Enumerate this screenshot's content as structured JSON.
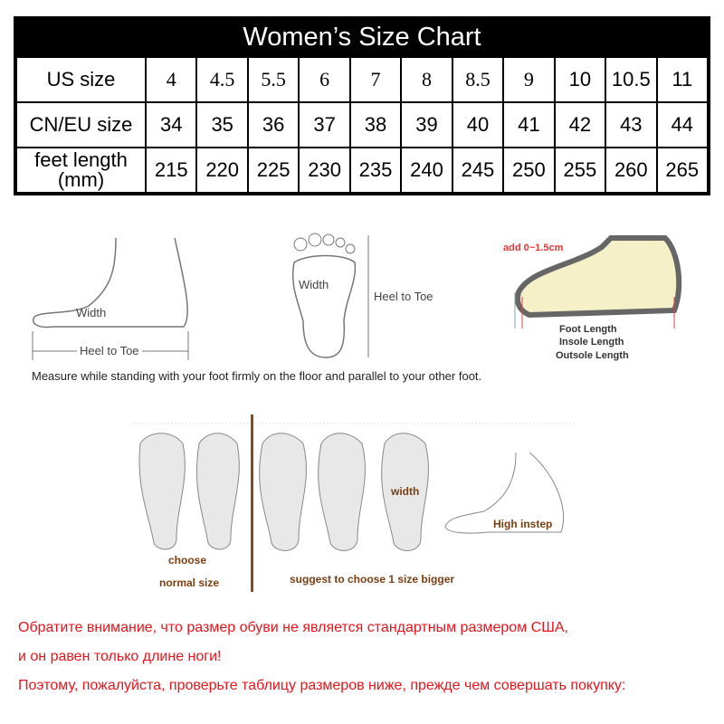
{
  "title": "Women’s Size Chart",
  "table": {
    "rows": [
      {
        "header": "US size",
        "values": [
          "4",
          "4.5",
          "5.5",
          "6",
          "7",
          "8",
          "8.5",
          "9",
          "10",
          "10.5",
          "11"
        ]
      },
      {
        "header": "CN/EU size",
        "values": [
          "34",
          "35",
          "36",
          "37",
          "38",
          "39",
          "40",
          "41",
          "42",
          "43",
          "44"
        ]
      },
      {
        "header": "feet length\n(mm)",
        "header_line1": "feet length",
        "header_line2": "(mm)",
        "values": [
          "215",
          "220",
          "225",
          "230",
          "235",
          "240",
          "245",
          "250",
          "255",
          "260",
          "265"
        ]
      }
    ]
  },
  "measure": {
    "side_width": "Width",
    "side_heel_to_toe": "Heel to Toe",
    "sole_width": "Width",
    "sole_heel_to_toe": "Heel to Toe",
    "shoe_add": "add 0~1.5cm",
    "foot_length": "Foot Length",
    "insole_length": "Insole Length",
    "outsole_length": "Outsole Length",
    "instruction": "Measure while standing with your foot firmly on the floor and parallel to your other foot."
  },
  "feet_types": {
    "choose_line1": "choose",
    "choose_line2": "normal size",
    "width": "width",
    "high_instep": "High instep",
    "suggest": "suggest to choose 1 size bigger"
  },
  "notice": [
    "Обратите внимание, что размер обуви не является стандартным размером США,",
    "и он равен только длине ноги!",
    "Поэтому, пожалуйста, проверьте таблицу размеров ниже, прежде чем совершать покупку:"
  ],
  "colors": {
    "notice": "#e8141b",
    "header_bg": "#000000",
    "divider": "#8a4a1a"
  }
}
